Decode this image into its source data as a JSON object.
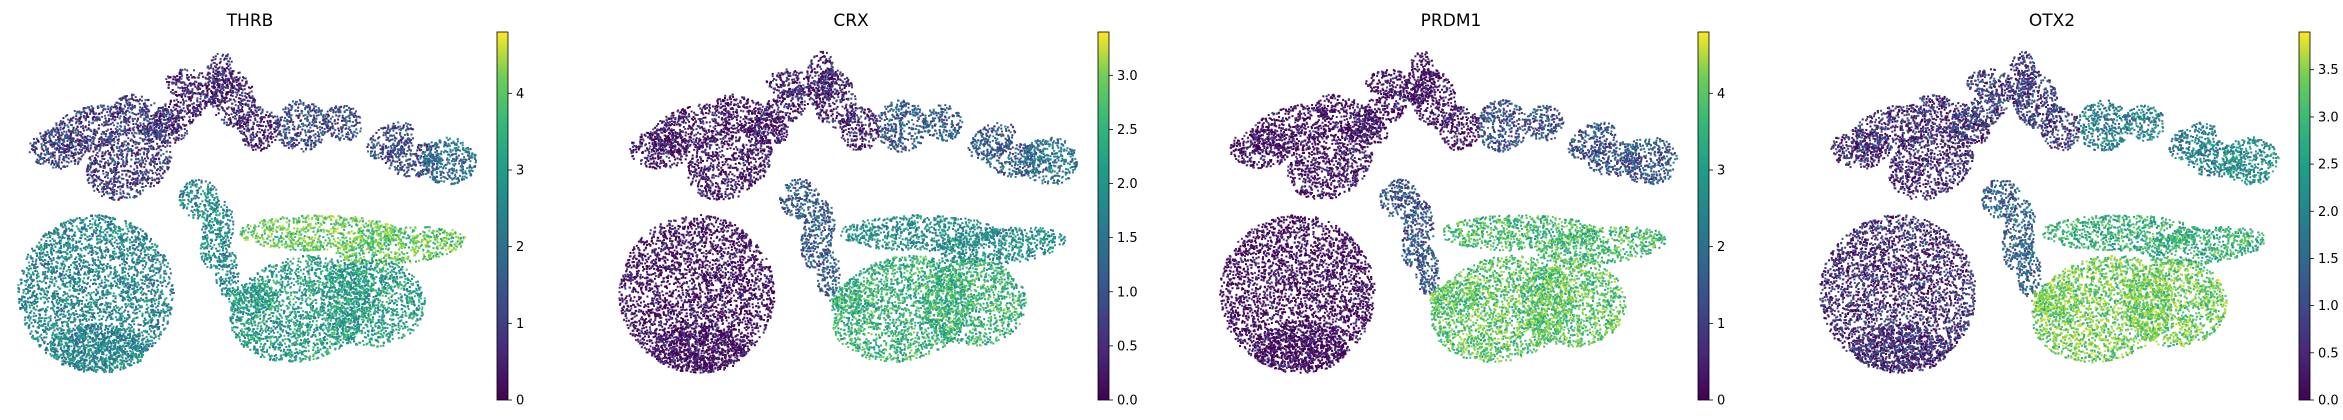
{
  "chart_data": [
    {
      "type": "scatter",
      "title": "THRB",
      "colormap": "viridis",
      "colorbar": {
        "min": 0,
        "max": 4.8,
        "ticks": [
          0,
          1,
          2,
          3,
          4
        ],
        "tick_labels": [
          "0",
          "1",
          "2",
          "3",
          "4"
        ]
      },
      "axes_visible": false,
      "expression_by_region": {
        "left_lobe": 0.9,
        "lower_left": 2.2,
        "center_stem": 2.3,
        "right_wing": 3.6,
        "right_lower": 2.7,
        "upper_leaves": 0.5,
        "right_leaves": 1.1,
        "far_right": 1.8
      }
    },
    {
      "type": "scatter",
      "title": "CRX",
      "colormap": "viridis",
      "colorbar": {
        "min": 0,
        "max": 3.4,
        "ticks": [
          0,
          0.5,
          1,
          1.5,
          2,
          2.5,
          3
        ],
        "tick_labels": [
          "0.0",
          "0.5",
          "1.0",
          "1.5",
          "2.0",
          "2.5",
          "3.0"
        ]
      },
      "axes_visible": false,
      "expression_by_region": {
        "left_lobe": 0.2,
        "lower_left": 0.1,
        "center_stem": 1.0,
        "right_wing": 1.7,
        "right_lower": 2.2,
        "upper_leaves": 0.3,
        "right_leaves": 1.0,
        "far_right": 1.3
      }
    },
    {
      "type": "scatter",
      "title": "PRDM1",
      "colormap": "viridis",
      "colorbar": {
        "min": 0,
        "max": 4.8,
        "ticks": [
          0,
          1,
          2,
          3,
          4
        ],
        "tick_labels": [
          "0",
          "1",
          "2",
          "3",
          "4"
        ]
      },
      "axes_visible": false,
      "expression_by_region": {
        "left_lobe": 0.2,
        "lower_left": 0.1,
        "center_stem": 1.3,
        "right_wing": 3.3,
        "right_lower": 3.5,
        "upper_leaves": 0.2,
        "right_leaves": 1.2,
        "far_right": 1.4
      }
    },
    {
      "type": "scatter",
      "title": "OTX2",
      "colormap": "viridis",
      "colorbar": {
        "min": 0,
        "max": 3.9,
        "ticks": [
          0,
          0.5,
          1,
          1.5,
          2,
          2.5,
          3,
          3.5
        ],
        "tick_labels": [
          "0.0",
          "0.5",
          "1.0",
          "1.5",
          "2.0",
          "2.5",
          "3.0",
          "3.5"
        ]
      },
      "axes_visible": false,
      "expression_by_region": {
        "left_lobe": 0.5,
        "lower_left": 0.5,
        "center_stem": 1.2,
        "right_wing": 2.5,
        "right_lower": 3.0,
        "upper_leaves": 0.7,
        "right_leaves": 1.7,
        "far_right": 2.0
      }
    }
  ]
}
